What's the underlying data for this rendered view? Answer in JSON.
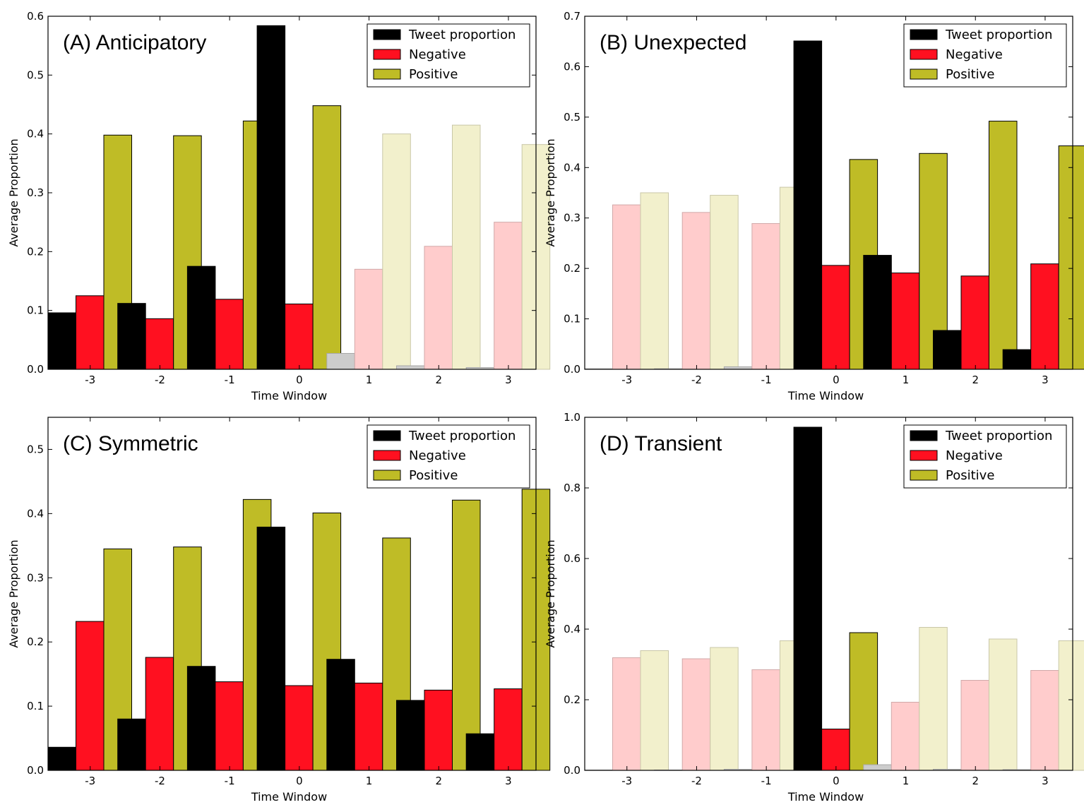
{
  "colors": {
    "tweet": "#000000",
    "negative": "#ff1020",
    "positive": "#bfbc26",
    "frame": "#000000"
  },
  "chart_data": [
    {
      "type": "bar",
      "title": "(A) Anticipatory",
      "xlabel": "Time Window",
      "ylabel": "Average Proportion",
      "categories": [
        "-3",
        "-2",
        "-1",
        "0",
        "1",
        "2",
        "3"
      ],
      "ylim": [
        0,
        0.6
      ],
      "yticks": [
        "0.0",
        "0.1",
        "0.2",
        "0.3",
        "0.4",
        "0.5",
        "0.6"
      ],
      "legend_position": "top-right",
      "faded_categories": [
        "1",
        "2",
        "3"
      ],
      "series": [
        {
          "name": "Tweet proportion",
          "values": [
            0.096,
            0.112,
            0.175,
            0.584,
            0.027,
            0.006,
            0.003
          ]
        },
        {
          "name": "Negative",
          "values": [
            0.125,
            0.086,
            0.119,
            0.111,
            0.17,
            0.209,
            0.25
          ]
        },
        {
          "name": "Positive",
          "values": [
            0.398,
            0.397,
            0.422,
            0.448,
            0.4,
            0.415,
            0.382
          ]
        }
      ]
    },
    {
      "type": "bar",
      "title": "(B) Unexpected",
      "xlabel": "Time Window",
      "ylabel": "Average Proportion",
      "categories": [
        "-3",
        "-2",
        "-1",
        "0",
        "1",
        "2",
        "3"
      ],
      "ylim": [
        0,
        0.7
      ],
      "yticks": [
        "0.0",
        "0.1",
        "0.2",
        "0.3",
        "0.4",
        "0.5",
        "0.6",
        "0.7"
      ],
      "legend_position": "top-right",
      "faded_categories": [
        "-3",
        "-2",
        "-1"
      ],
      "series": [
        {
          "name": "Tweet proportion",
          "values": [
            0.001,
            0.001,
            0.005,
            0.651,
            0.226,
            0.077,
            0.039
          ]
        },
        {
          "name": "Negative",
          "values": [
            0.326,
            0.311,
            0.289,
            0.206,
            0.191,
            0.185,
            0.209
          ]
        },
        {
          "name": "Positive",
          "values": [
            0.35,
            0.345,
            0.361,
            0.416,
            0.428,
            0.492,
            0.443
          ]
        }
      ]
    },
    {
      "type": "bar",
      "title": "(C) Symmetric",
      "xlabel": "Time Window",
      "ylabel": "Average Proportion",
      "categories": [
        "-3",
        "-2",
        "-1",
        "0",
        "1",
        "2",
        "3"
      ],
      "ylim": [
        0,
        0.55
      ],
      "yticks": [
        "0.0",
        "0.1",
        "0.2",
        "0.3",
        "0.4",
        "0.5"
      ],
      "legend_position": "top-right",
      "faded_categories": [],
      "series": [
        {
          "name": "Tweet proportion",
          "values": [
            0.036,
            0.08,
            0.162,
            0.379,
            0.173,
            0.109,
            0.057
          ]
        },
        {
          "name": "Negative",
          "values": [
            0.232,
            0.176,
            0.138,
            0.132,
            0.136,
            0.125,
            0.127
          ]
        },
        {
          "name": "Positive",
          "values": [
            0.345,
            0.348,
            0.422,
            0.401,
            0.362,
            0.421,
            0.438
          ]
        }
      ]
    },
    {
      "type": "bar",
      "title": "(D) Transient",
      "xlabel": "Time Window",
      "ylabel": "Average Proportion",
      "categories": [
        "-3",
        "-2",
        "-1",
        "0",
        "1",
        "2",
        "3"
      ],
      "ylim": [
        0,
        1.0
      ],
      "yticks": [
        "0.0",
        "0.2",
        "0.4",
        "0.6",
        "0.8",
        "1.0"
      ],
      "legend_position": "top-right",
      "faded_categories": [
        "-3",
        "-2",
        "-1",
        "1",
        "2",
        "3"
      ],
      "series": [
        {
          "name": "Tweet proportion",
          "values": [
            0.001,
            0.001,
            0.003,
            0.972,
            0.016,
            0.003,
            0.002
          ]
        },
        {
          "name": "Negative",
          "values": [
            0.319,
            0.316,
            0.285,
            0.117,
            0.193,
            0.255,
            0.283
          ]
        },
        {
          "name": "Positive",
          "values": [
            0.339,
            0.348,
            0.367,
            0.39,
            0.405,
            0.372,
            0.367
          ]
        }
      ]
    }
  ]
}
